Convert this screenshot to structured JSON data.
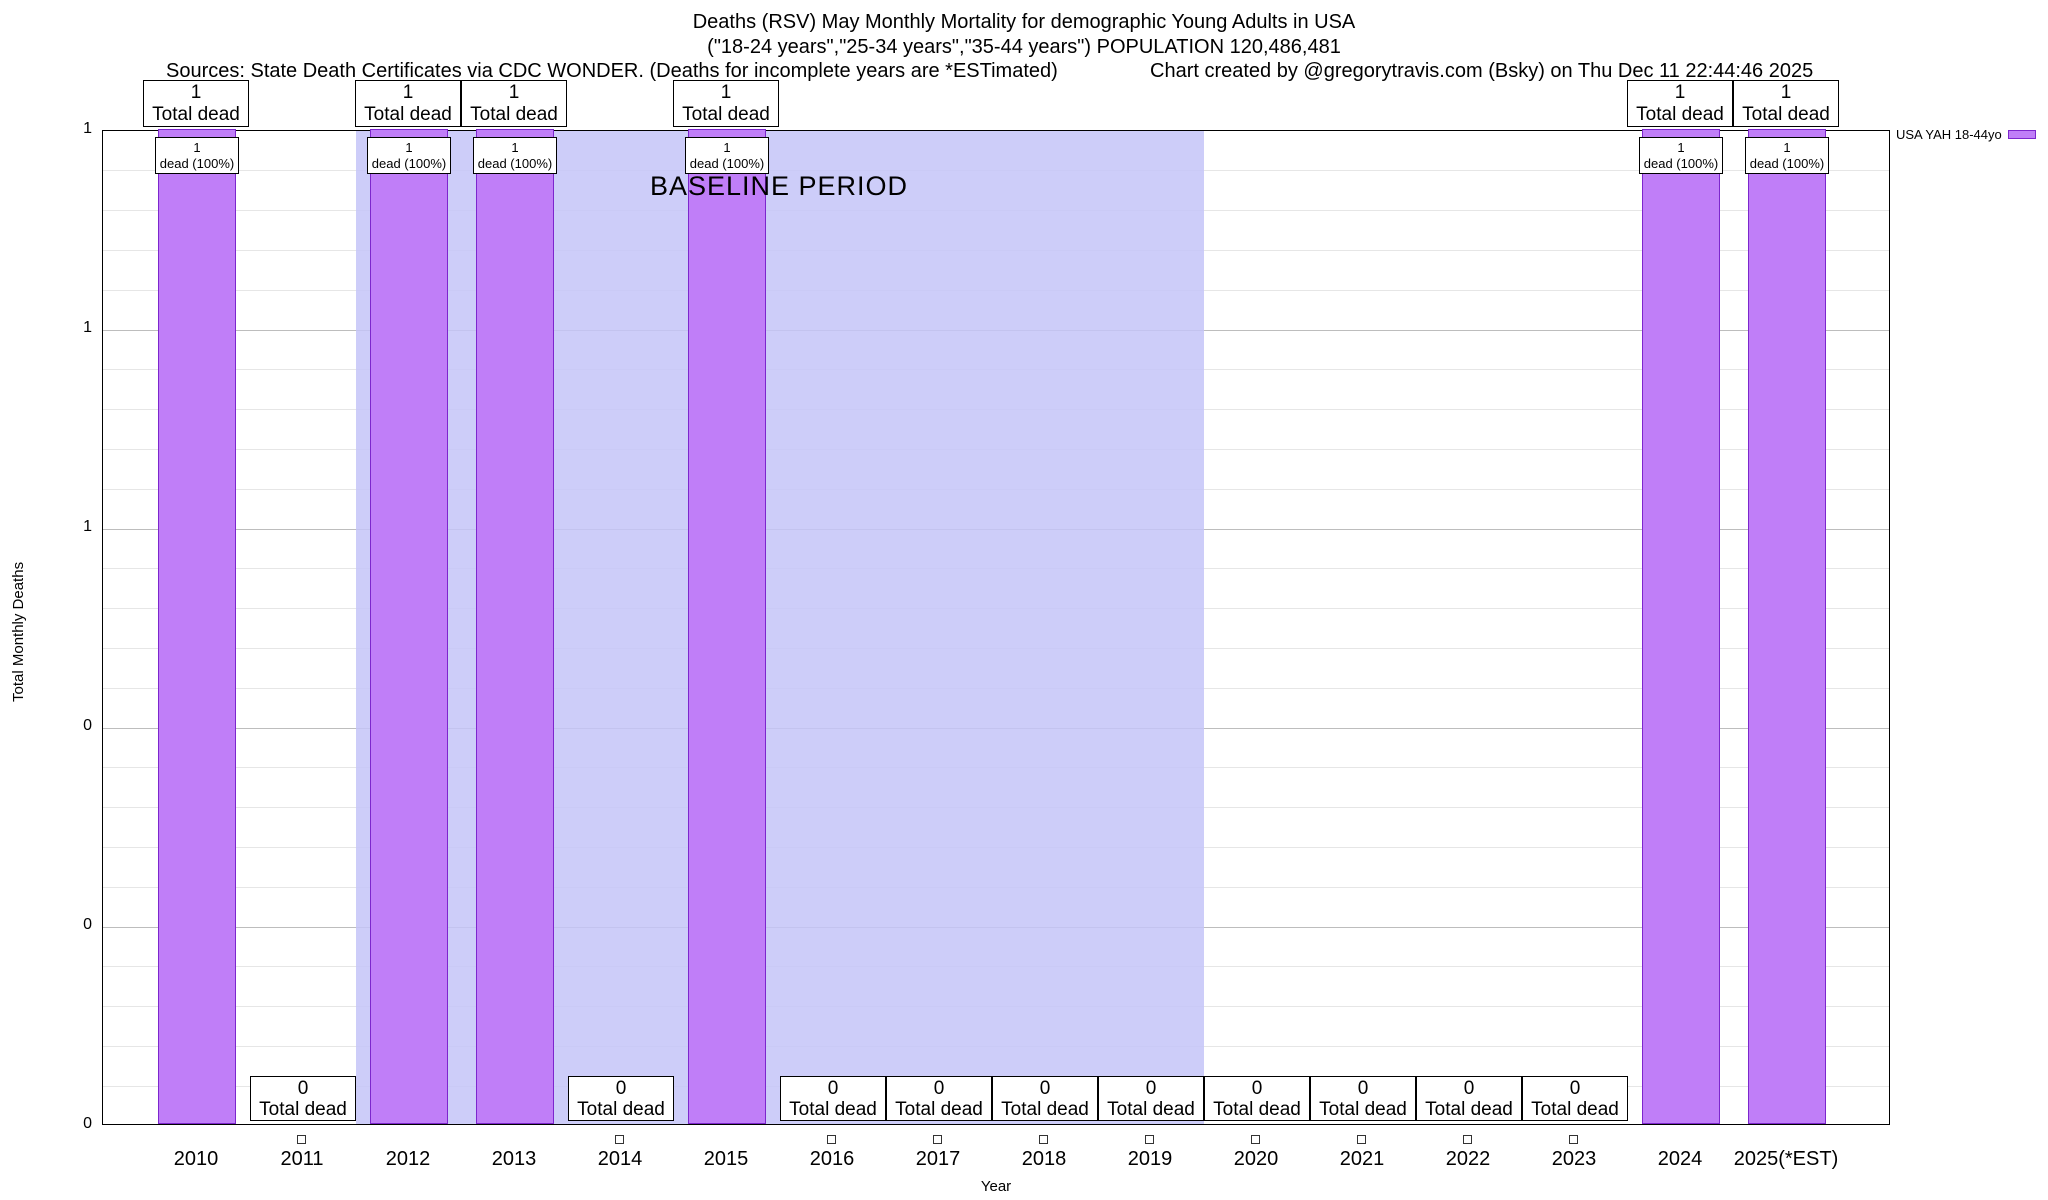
{
  "title": {
    "line1": "Deaths (RSV) May Monthly Mortality for demographic Young Adults in USA",
    "line2": "(\"18-24 years\",\"25-34 years\",\"35-44 years\") POPULATION 120,486,481",
    "sources": "Sources: State Death Certificates via CDC WONDER. (Deaths for incomplete years are *ESTimated)",
    "credit": "Chart created by @gregorytravis.com (Bsky) on Thu Dec 11 22:44:46 2025"
  },
  "chart_data": {
    "type": "bar",
    "title": "Deaths (RSV) May Monthly Mortality for demographic Young Adults in USA",
    "xlabel": "Year",
    "ylabel": "Total Monthly Deaths",
    "ylim": [
      0,
      1
    ],
    "grid": true,
    "ytick_values": [
      0,
      0.2,
      0.4,
      0.6,
      0.8,
      1
    ],
    "ytick_labels": [
      "0",
      "0",
      "0",
      "1",
      "1",
      "1"
    ],
    "categories": [
      "2010",
      "2011",
      "2012",
      "2013",
      "2014",
      "2015",
      "2016",
      "2017",
      "2018",
      "2019",
      "2020",
      "2021",
      "2022",
      "2023",
      "2024",
      "2025(*EST)"
    ],
    "series": [
      {
        "name": "USA YAH 18-44yo",
        "values": [
          1,
          0,
          1,
          1,
          0,
          1,
          0,
          0,
          0,
          0,
          0,
          0,
          0,
          0,
          1,
          1
        ]
      }
    ],
    "annotations": {
      "top_caption": "Total dead",
      "inner_caption": "dead (100%)",
      "zero_caption": "Total dead",
      "baseline_label": "BASELINE PERIOD"
    },
    "baseline_region": {
      "from_category": "2012",
      "to_category": "2019"
    },
    "legend": {
      "position": "top-right-outside",
      "entries": [
        "USA YAH 18-44yo"
      ]
    },
    "colors": {
      "bar_fill": "#c07ef8",
      "bar_border": "#7d26cd",
      "baseline_band": "#c4c4f8",
      "grid_major": "#bdbdbd",
      "grid_minor": "#e6e6e6"
    }
  }
}
